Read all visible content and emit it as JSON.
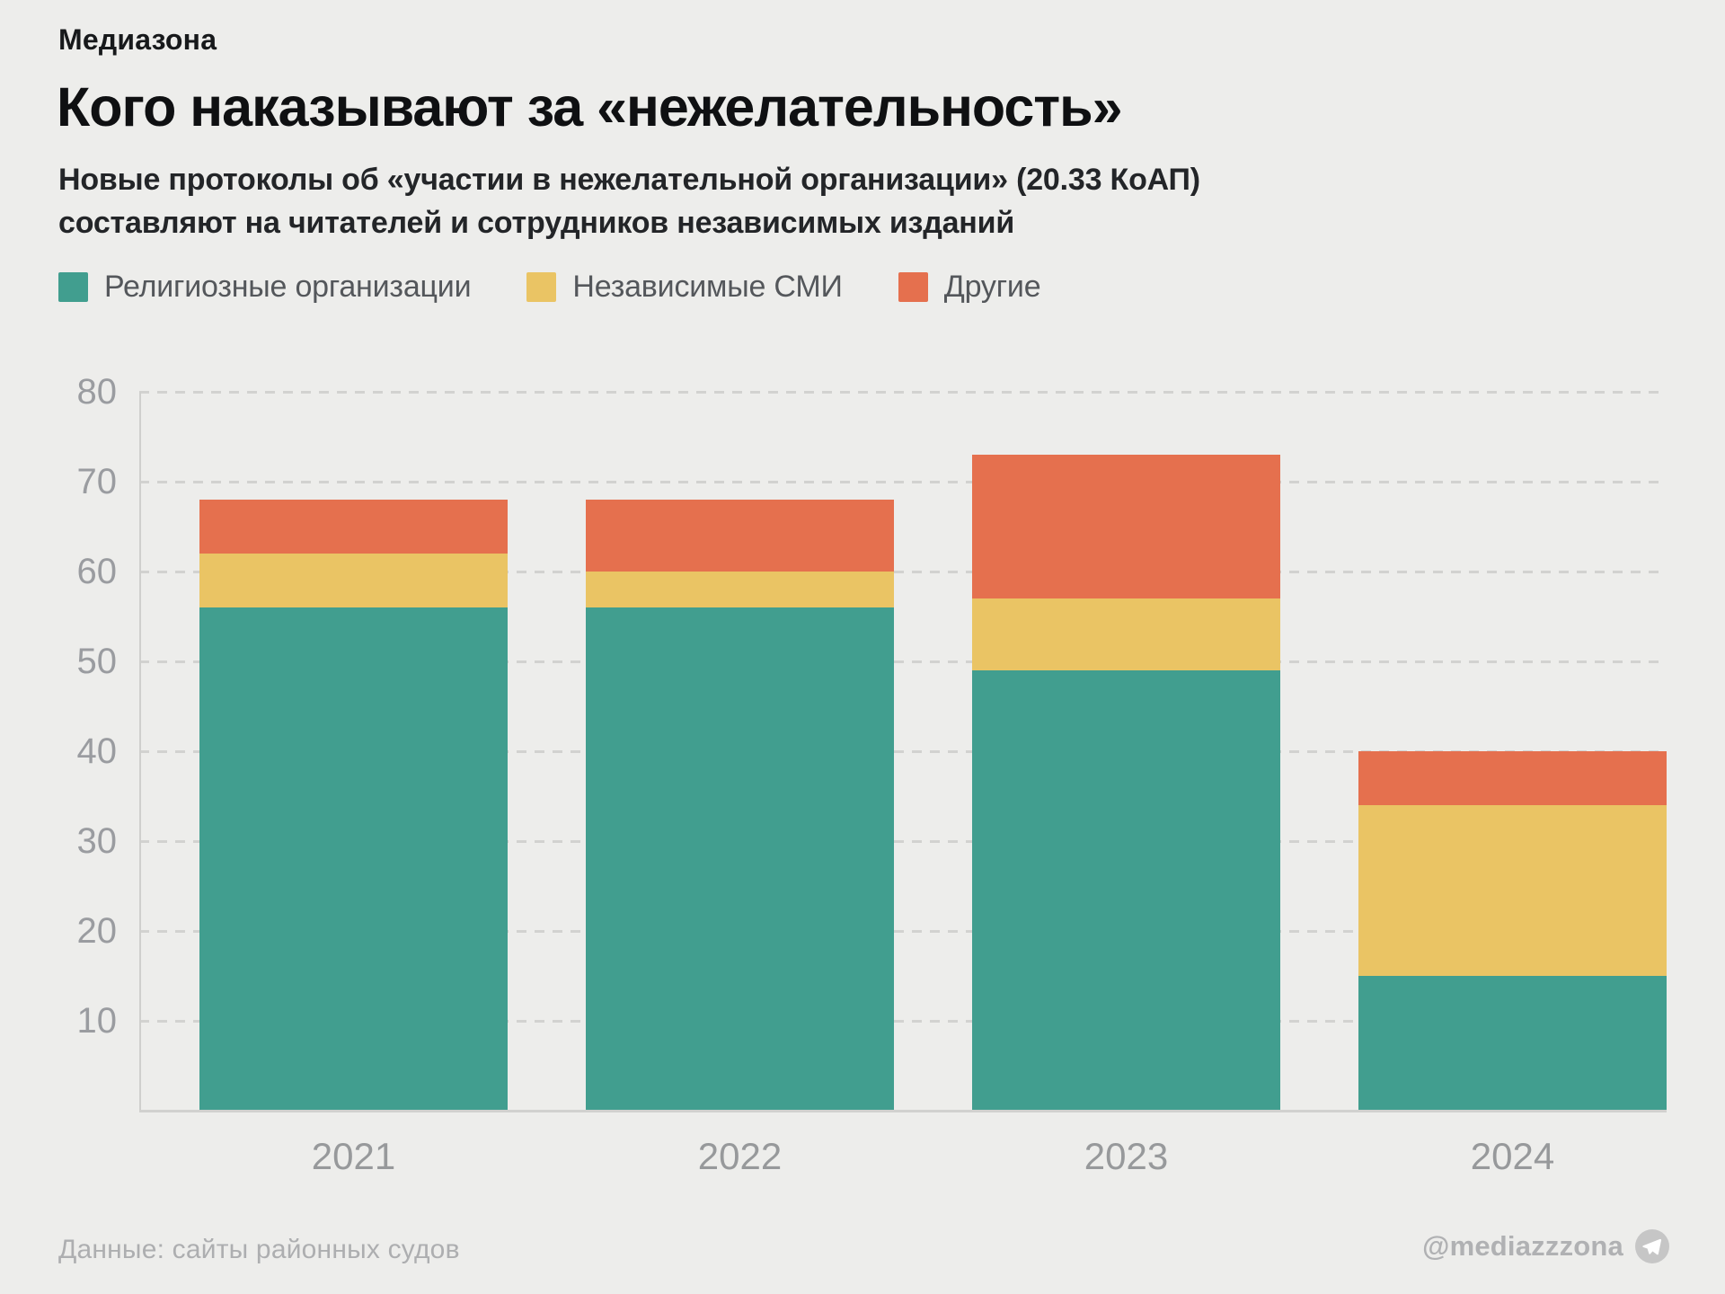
{
  "brand": "Медиазона",
  "title": "Кого наказывают за «нежелательность»",
  "subtitle": {
    "line1": "Новые протоколы об «участии в нежелательной организации» (20.33 КоАП)",
    "line2": "составляют на читателей и сотрудников независимых изданий"
  },
  "footer": {
    "source": "Данные: сайты районных судов",
    "handle": "@mediazzzona",
    "icon": "telegram-icon"
  },
  "colors": {
    "background": "#EDEDEB",
    "religious": "#419E8F",
    "media": "#EAC464",
    "other": "#E56F4D",
    "gridline": "#D2D2D0",
    "tick_text": "#9A9CA0"
  },
  "chart_data": {
    "type": "bar",
    "stacked": true,
    "title": "Кого наказывают за «нежелательность»",
    "categories": [
      "2021",
      "2022",
      "2023",
      "2024"
    ],
    "series": [
      {
        "name": "Религиозные организации",
        "color": "#419E8F",
        "values": [
          56,
          56,
          49,
          15
        ]
      },
      {
        "name": "Независимые СМИ",
        "color": "#EAC464",
        "values": [
          6,
          4,
          8,
          19
        ]
      },
      {
        "name": "Другие",
        "color": "#E5704E",
        "values": [
          6,
          8,
          16,
          6
        ]
      }
    ],
    "totals": [
      68,
      68,
      73,
      40
    ],
    "xlabel": "",
    "ylabel": "",
    "ylim": [
      0,
      80
    ],
    "yticks": [
      10,
      20,
      30,
      40,
      50,
      60,
      70,
      80
    ],
    "grid": "dashed-horizontal",
    "legend_position": "top"
  }
}
